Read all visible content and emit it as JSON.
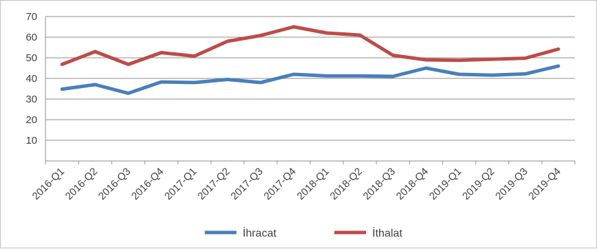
{
  "chart_data": {
    "type": "line",
    "categories": [
      "2016-Q1",
      "2016-Q2",
      "2016-Q3",
      "2016-Q4",
      "2017-Q1",
      "2017-Q2",
      "2017-Q3",
      "2017-Q4",
      "2018-Q1",
      "2018-Q2",
      "2018-Q3",
      "2018-Q4",
      "2019-Q1",
      "2019-Q2",
      "2019-Q3",
      "2019-Q4"
    ],
    "series": [
      {
        "name": "İhracat",
        "color": "#4a7ebb",
        "values": [
          34.8,
          37,
          32.8,
          38.3,
          38,
          39.5,
          38,
          42,
          41.2,
          41.2,
          41,
          45,
          42,
          41.6,
          42.2,
          46
        ]
      },
      {
        "name": "İthalat",
        "color": "#be4b48",
        "values": [
          46.8,
          53,
          46.8,
          52.5,
          50.8,
          58,
          60.8,
          65,
          62,
          61,
          51.2,
          49,
          48.8,
          49.3,
          49.8,
          54.2
        ]
      }
    ],
    "title": "",
    "xlabel": "",
    "ylabel": "",
    "ylim": [
      0,
      70
    ],
    "yticks": [
      10,
      20,
      30,
      40,
      50,
      60,
      70
    ],
    "grid": true,
    "legend": "bottom"
  }
}
